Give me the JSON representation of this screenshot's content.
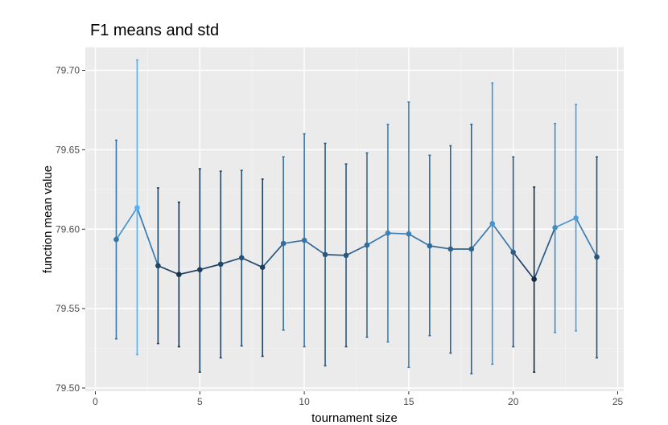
{
  "chart_data": {
    "type": "line",
    "title": "F1 means and std",
    "xlabel": "tournament size",
    "ylabel": "function mean value",
    "xlim": [
      0,
      25
    ],
    "ylim": [
      79.5,
      79.71
    ],
    "x_ticks": [
      0,
      5,
      10,
      15,
      20,
      25
    ],
    "x_tick_labels": [
      "0",
      "5",
      "10",
      "15",
      "20",
      "25"
    ],
    "y_ticks": [
      79.5,
      79.55,
      79.6,
      79.65,
      79.7
    ],
    "y_tick_labels": [
      "79.50",
      "79.55",
      "79.60",
      "79.65",
      "79.70"
    ],
    "grid": true,
    "legend": "none",
    "color_scale": {
      "low": "#132b43",
      "high": "#56b1f7"
    },
    "points": [
      {
        "x": 1,
        "mean": 79.5935,
        "lower": 79.531,
        "upper": 79.656
      },
      {
        "x": 2,
        "mean": 79.6135,
        "lower": 79.521,
        "upper": 79.7065
      },
      {
        "x": 3,
        "mean": 79.577,
        "lower": 79.528,
        "upper": 79.626
      },
      {
        "x": 4,
        "mean": 79.5715,
        "lower": 79.526,
        "upper": 79.617
      },
      {
        "x": 5,
        "mean": 79.5745,
        "lower": 79.51,
        "upper": 79.638
      },
      {
        "x": 6,
        "mean": 79.578,
        "lower": 79.519,
        "upper": 79.6365
      },
      {
        "x": 7,
        "mean": 79.582,
        "lower": 79.5265,
        "upper": 79.637
      },
      {
        "x": 8,
        "mean": 79.576,
        "lower": 79.52,
        "upper": 79.6315
      },
      {
        "x": 9,
        "mean": 79.591,
        "lower": 79.5365,
        "upper": 79.6455
      },
      {
        "x": 10,
        "mean": 79.593,
        "lower": 79.526,
        "upper": 79.66
      },
      {
        "x": 11,
        "mean": 79.584,
        "lower": 79.514,
        "upper": 79.654
      },
      {
        "x": 12,
        "mean": 79.5835,
        "lower": 79.526,
        "upper": 79.641
      },
      {
        "x": 13,
        "mean": 79.59,
        "lower": 79.532,
        "upper": 79.648
      },
      {
        "x": 14,
        "mean": 79.5975,
        "lower": 79.529,
        "upper": 79.666
      },
      {
        "x": 15,
        "mean": 79.597,
        "lower": 79.513,
        "upper": 79.68
      },
      {
        "x": 16,
        "mean": 79.5895,
        "lower": 79.533,
        "upper": 79.6465
      },
      {
        "x": 17,
        "mean": 79.5875,
        "lower": 79.522,
        "upper": 79.6525
      },
      {
        "x": 18,
        "mean": 79.5875,
        "lower": 79.509,
        "upper": 79.666
      },
      {
        "x": 19,
        "mean": 79.6035,
        "lower": 79.515,
        "upper": 79.692
      },
      {
        "x": 20,
        "mean": 79.5855,
        "lower": 79.526,
        "upper": 79.6455
      },
      {
        "x": 21,
        "mean": 79.5685,
        "lower": 79.51,
        "upper": 79.6265
      },
      {
        "x": 22,
        "mean": 79.601,
        "lower": 79.535,
        "upper": 79.6665
      },
      {
        "x": 23,
        "mean": 79.607,
        "lower": 79.536,
        "upper": 79.6785
      },
      {
        "x": 24,
        "mean": 79.5825,
        "lower": 79.519,
        "upper": 79.6455
      }
    ]
  }
}
